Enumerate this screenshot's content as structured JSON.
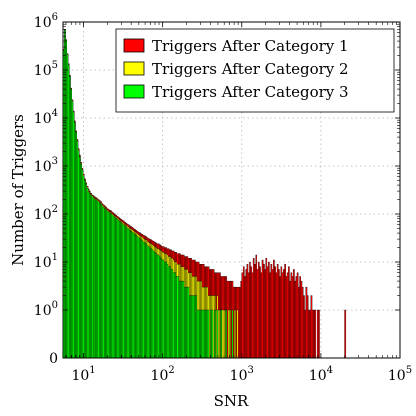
{
  "chart_data": {
    "type": "bar",
    "title": "",
    "xlabel": "SNR",
    "ylabel": "Number of Triggers",
    "x_scale": "log",
    "y_scale": "symlog",
    "xlim": [
      5.5,
      100000
    ],
    "ylim": [
      0,
      1000000
    ],
    "x_ticks": [
      {
        "value": 10,
        "base": "10",
        "exp": "1"
      },
      {
        "value": 100,
        "base": "10",
        "exp": "2"
      },
      {
        "value": 1000,
        "base": "10",
        "exp": "3"
      },
      {
        "value": 10000,
        "base": "10",
        "exp": "4"
      },
      {
        "value": 100000,
        "base": "10",
        "exp": "5"
      }
    ],
    "y_ticks": [
      {
        "value": 0,
        "base": "0",
        "exp": ""
      },
      {
        "value": 1,
        "base": "10",
        "exp": "0"
      },
      {
        "value": 10,
        "base": "10",
        "exp": "1"
      },
      {
        "value": 100,
        "base": "10",
        "exp": "2"
      },
      {
        "value": 1000,
        "base": "10",
        "exp": "3"
      },
      {
        "value": 10000,
        "base": "10",
        "exp": "4"
      },
      {
        "value": 100000,
        "base": "10",
        "exp": "5"
      },
      {
        "value": 1000000,
        "base": "10",
        "exp": "6"
      }
    ],
    "grid": true,
    "legend_position": "top-right",
    "bin_edges_snr": [
      5.5,
      5.7,
      5.91,
      6.13,
      6.36,
      6.59,
      6.83,
      7.09,
      7.35,
      7.62,
      7.9,
      8.2,
      8.5,
      8.81,
      9.14,
      9.48,
      9.83,
      10.2,
      10.6,
      11.0,
      11.4,
      11.8,
      12.2,
      12.7,
      13.2,
      13.6,
      14.1,
      14.7,
      15.2,
      15.8,
      16.4,
      17.0,
      17.6,
      18.3,
      18.9,
      19.6,
      20.4,
      21.1,
      21.9,
      22.7,
      23.6,
      24.4,
      25.3,
      26.3,
      27.3,
      28.3,
      29.3,
      30.4,
      31.5,
      32.7,
      33.9,
      35.2,
      36.5,
      37.8,
      39.2,
      40.7,
      42.2,
      43.7,
      45.4,
      47.0,
      48.8,
      50.6,
      52.5,
      54.4,
      56.4,
      58.5,
      60.7,
      62.9,
      65.3,
      67.7,
      70.2,
      72.8,
      75.5,
      78.3,
      81.2,
      84.2,
      87.3,
      90.5,
      93.9,
      97.4,
      101,
      105,
      109,
      113,
      117,
      121,
      126,
      130,
      135,
      140,
      146,
      151,
      157,
      162,
      168,
      175,
      181,
      188,
      195,
      202,
      209,
      217,
      225,
      233,
      242,
      251,
      260,
      270,
      280,
      290,
      301,
      312,
      324,
      336,
      348,
      361,
      374,
      388,
      403,
      418,
      433,
      449,
      466,
      483,
      501,
      520,
      539,
      559,
      580,
      601,
      624,
      647,
      671,
      696,
      721,
      748,
      776,
      805,
      835,
      866,
      898,
      931,
      966,
      1000,
      1040,
      1080,
      1120,
      1160,
      1200,
      1250,
      1290,
      1340,
      1390,
      1440,
      1500,
      1550,
      1610,
      1670,
      1730,
      1800,
      1870,
      1940,
      2010,
      2080,
      2160,
      2240,
      2320,
      2410,
      2500,
      2590,
      2690,
      2790,
      2890,
      3000,
      3110,
      3220,
      3340,
      3470,
      3600,
      3730,
      3870,
      4010,
      4160,
      4320,
      4480,
      4640,
      4810,
      4990,
      5180,
      5370,
      5570,
      5780,
      5990,
      6220,
      6450,
      6690,
      6930,
      7190,
      7460,
      7740,
      8020,
      8320,
      8630,
      8950,
      9280,
      9620,
      9980,
      10400,
      10700,
      11100,
      11500,
      12000,
      12400,
      12900,
      13300,
      13800,
      14400,
      14900,
      15400,
      16000,
      16600,
      17200,
      17900,
      18500,
      19200,
      19900,
      20700,
      21400,
      22200,
      23000,
      23900,
      24800,
      25700,
      26700,
      27700,
      28700,
      29800,
      30900,
      32000,
      33200,
      34400
    ],
    "series": [
      {
        "name": "Triggers After Category 1",
        "color": "#ff0000",
        "values": [
          270000,
          700000,
          430000,
          220000,
          135000,
          78000,
          42000,
          24000,
          14000,
          8700,
          5400,
          3600,
          2300,
          1700,
          1200,
          900,
          680,
          540,
          450,
          380,
          330,
          300,
          270,
          250,
          240,
          230,
          220,
          210,
          200,
          190,
          180,
          165,
          155,
          148,
          140,
          130,
          125,
          120,
          117,
          110,
          105,
          100,
          95,
          90,
          86,
          82,
          78,
          75,
          72,
          68,
          65,
          62,
          60,
          57,
          55,
          53,
          50,
          48,
          46,
          44,
          42,
          41,
          39,
          38,
          36,
          35,
          34,
          32,
          31,
          30,
          29,
          28,
          27,
          26,
          25,
          24,
          24,
          23,
          22,
          21,
          21,
          20,
          20,
          19,
          19,
          18,
          18,
          17,
          17,
          16,
          16,
          15,
          15,
          15,
          14,
          14,
          14,
          13,
          13,
          13,
          12,
          12,
          12,
          11,
          11,
          11,
          10,
          10,
          10,
          9,
          9,
          9,
          9,
          8,
          8,
          8,
          8,
          7,
          7,
          7,
          7,
          6,
          6,
          6,
          6,
          6,
          5,
          5,
          5,
          5,
          5,
          4,
          4,
          4,
          4,
          4,
          3,
          3,
          3,
          3,
          3,
          3,
          4,
          6,
          8,
          5,
          7,
          9,
          6,
          10,
          8,
          6,
          12,
          9,
          14,
          7,
          10,
          8,
          6,
          11,
          9,
          7,
          12,
          8,
          10,
          6,
          9,
          7,
          11,
          8,
          6,
          9,
          7,
          5,
          8,
          6,
          7,
          9,
          5,
          6,
          8,
          4,
          6,
          5,
          7,
          4,
          5,
          6,
          3,
          5,
          4,
          3,
          2,
          1,
          3,
          2,
          1,
          1,
          2,
          1,
          1,
          1,
          0,
          1,
          1,
          0,
          0,
          0,
          0,
          0,
          0,
          0,
          0,
          0,
          0,
          0,
          0,
          0,
          0,
          0,
          0,
          0,
          0,
          0,
          0,
          1
        ]
      },
      {
        "name": "Triggers After Category 2",
        "color": "#ffff00",
        "values": [
          260000,
          690000,
          420000,
          215000,
          132000,
          76000,
          41000,
          23000,
          13500,
          8400,
          5200,
          3400,
          2200,
          1600,
          1150,
          860,
          650,
          520,
          430,
          360,
          315,
          285,
          260,
          240,
          228,
          218,
          208,
          198,
          188,
          178,
          168,
          155,
          145,
          138,
          130,
          121,
          116,
          111,
          108,
          101,
          96,
          92,
          87,
          82,
          79,
          75,
          71,
          68,
          65,
          62,
          59,
          56,
          54,
          51,
          49,
          47,
          45,
          43,
          41,
          39,
          37,
          36,
          34,
          33,
          31,
          30,
          29,
          27,
          26,
          25,
          24,
          23,
          22,
          21,
          20,
          19,
          19,
          18,
          17,
          16,
          16,
          15,
          15,
          14,
          13,
          13,
          12,
          12,
          11,
          10,
          10,
          9,
          9,
          9,
          8,
          8,
          8,
          7,
          7,
          7,
          6,
          6,
          6,
          5,
          5,
          5,
          5,
          4,
          4,
          4,
          4,
          3,
          3,
          3,
          3,
          3,
          2,
          2,
          2,
          2,
          2,
          2,
          1,
          2,
          1,
          1,
          1,
          1,
          1,
          1,
          1,
          0,
          1,
          1,
          0,
          1,
          0,
          1,
          0,
          1,
          0,
          0,
          0,
          0,
          0,
          0,
          0,
          0,
          0,
          0,
          0,
          0,
          0,
          0,
          0,
          0,
          0,
          0,
          0,
          0,
          0,
          0,
          0,
          0,
          0,
          0,
          0,
          0,
          0,
          0,
          0,
          0,
          0,
          0,
          0,
          0,
          0,
          0,
          0,
          0,
          0,
          0,
          0,
          0,
          0,
          0,
          0,
          0,
          0,
          0,
          0,
          0,
          0,
          0,
          0,
          0,
          0,
          0,
          0,
          0,
          0,
          0,
          0,
          0,
          0,
          0,
          0,
          0,
          0,
          0,
          0,
          0,
          0,
          0,
          0,
          0,
          0,
          0,
          0,
          0,
          0,
          0,
          0
        ]
      },
      {
        "name": "Triggers After Category 3",
        "color": "#00ff00",
        "values": [
          250000,
          680000,
          410000,
          210000,
          129000,
          74000,
          40000,
          22500,
          13000,
          8100,
          5000,
          3300,
          2100,
          1550,
          1100,
          830,
          620,
          500,
          410,
          345,
          300,
          272,
          248,
          229,
          217,
          208,
          198,
          189,
          179,
          170,
          160,
          148,
          138,
          131,
          123,
          115,
          110,
          105,
          102,
          96,
          91,
          87,
          82,
          77,
          74,
          70,
          66,
          63,
          60,
          57,
          54,
          51,
          49,
          46,
          44,
          42,
          40,
          38,
          36,
          34,
          32,
          31,
          29,
          28,
          26,
          25,
          24,
          22,
          21,
          20,
          19,
          18,
          17,
          16,
          15,
          14,
          14,
          13,
          12,
          11,
          11,
          10,
          10,
          9,
          8,
          8,
          7,
          7,
          6,
          6,
          5,
          5,
          5,
          4,
          4,
          4,
          4,
          3,
          3,
          3,
          3,
          2,
          2,
          2,
          2,
          2,
          2,
          1,
          1,
          1,
          1,
          1,
          1,
          1,
          1,
          1,
          1,
          0,
          1,
          1,
          0,
          1,
          0,
          1,
          0,
          0,
          1,
          0,
          0,
          0,
          1,
          0,
          0,
          0,
          0,
          1,
          0,
          0,
          0,
          0,
          0,
          0,
          0,
          0,
          0,
          0,
          0,
          0,
          0,
          0,
          0,
          0,
          0,
          0,
          0,
          0,
          0,
          0,
          0,
          0,
          0,
          0,
          0,
          0,
          0,
          0,
          0,
          0,
          0,
          0,
          0,
          0,
          0,
          0,
          0,
          0,
          0,
          0,
          0,
          0,
          0,
          0,
          0,
          0,
          0,
          0,
          0,
          0,
          0,
          0,
          0,
          0,
          0,
          0,
          0,
          0,
          0,
          0,
          0,
          0,
          0,
          0,
          0,
          0,
          0,
          0,
          0,
          0,
          0,
          0,
          0,
          0,
          0,
          0,
          0,
          0,
          0,
          0,
          0,
          0,
          0,
          0,
          0,
          0,
          0,
          0,
          0,
          0,
          0
        ]
      }
    ]
  }
}
